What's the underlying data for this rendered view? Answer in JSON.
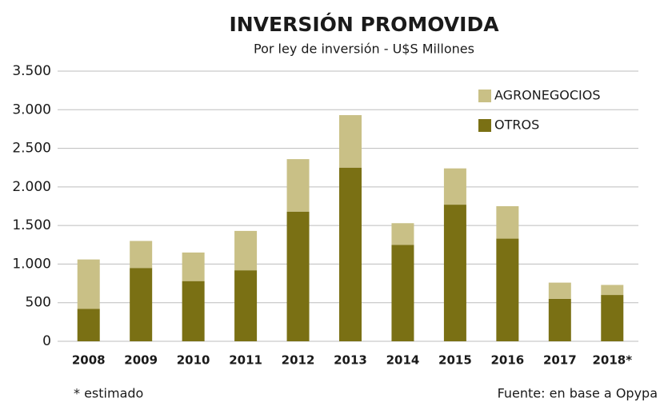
{
  "chart_data": {
    "type": "stacked-bar",
    "title": "INVERSIÓN PROMOVIDA",
    "subtitle": "Por ley de inversión  - U$S Millones",
    "note": "* estimado",
    "source": "Fuente: en base a Opypa",
    "categories": [
      "2008",
      "2009",
      "2010",
      "2011",
      "2012",
      "2013",
      "2014",
      "2015",
      "2016",
      "2017",
      "2018*"
    ],
    "series": [
      {
        "name": "OTROS",
        "color": "#7a7014",
        "values": [
          420,
          950,
          780,
          920,
          1680,
          2250,
          1250,
          1770,
          1330,
          550,
          600
        ]
      },
      {
        "name": "AGRONEGOCIOS",
        "color": "#c9c086",
        "values": [
          640,
          350,
          370,
          510,
          680,
          680,
          280,
          470,
          420,
          210,
          130
        ]
      }
    ],
    "ylim": [
      0,
      3500
    ],
    "yticks": [
      0,
      500,
      {
        "value": 1000,
        "label": "1.000"
      },
      {
        "value": 1500,
        "label": "1.500"
      },
      {
        "value": 2000,
        "label": "2.000"
      },
      {
        "value": 2500,
        "label": "2.500"
      },
      {
        "value": 3000,
        "label": "3.000"
      },
      {
        "value": 3500,
        "label": "3.500"
      }
    ],
    "grid": true,
    "legend": "top-right"
  }
}
